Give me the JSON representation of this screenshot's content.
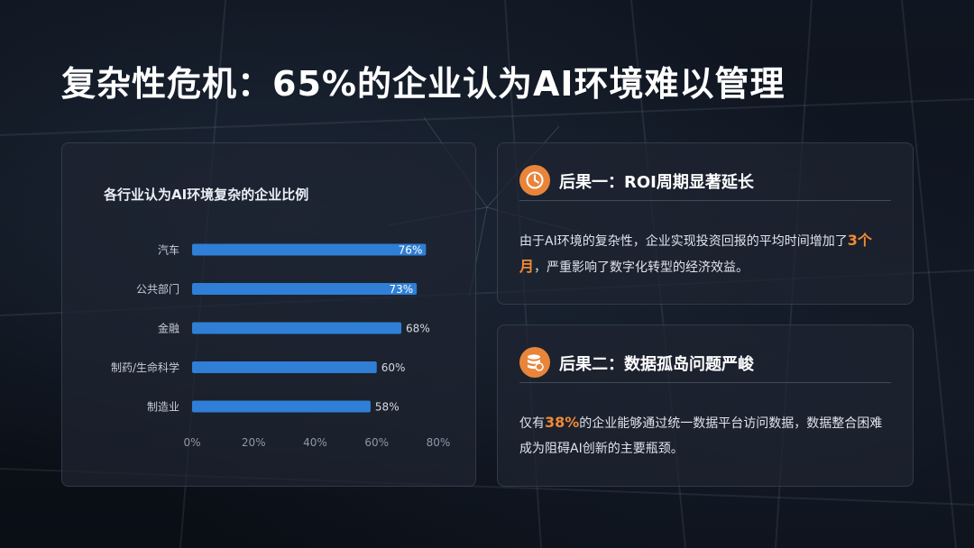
{
  "title": "复杂性危机：65%的企业认为AI环境难以管理",
  "chart_data": {
    "type": "bar",
    "orientation": "horizontal",
    "title": "各行业认为AI环境复杂的企业比例",
    "categories": [
      "汽车",
      "公共部门",
      "金融",
      "制药/生命科学",
      "制造业"
    ],
    "values": [
      76,
      73,
      68,
      60,
      58
    ],
    "labels": [
      "76%",
      "73%",
      "68%",
      "60%",
      "58%"
    ],
    "xticks": [
      "0%",
      "20%",
      "40%",
      "60%",
      "80%"
    ],
    "xlim": [
      0,
      80
    ],
    "bar_color": "#2f7fd6"
  },
  "cards": [
    {
      "icon": "clock-icon",
      "heading": "后果一：ROI周期显著延长",
      "body_before": "由于AI环境的复杂性，企业实现投资回报的平均时间增加了",
      "highlight": "3个月",
      "body_after": "，严重影响了数字化转型的经济效益。"
    },
    {
      "icon": "database-icon",
      "heading": "后果二：数据孤岛问题严峻",
      "body_before": "仅有",
      "highlight": "38%",
      "body_after": "的企业能够通过统一数据平台访问数据，数据整合困难成为阻碍AI创新的主要瓶颈。"
    }
  ],
  "accent_color": "#e8853a"
}
